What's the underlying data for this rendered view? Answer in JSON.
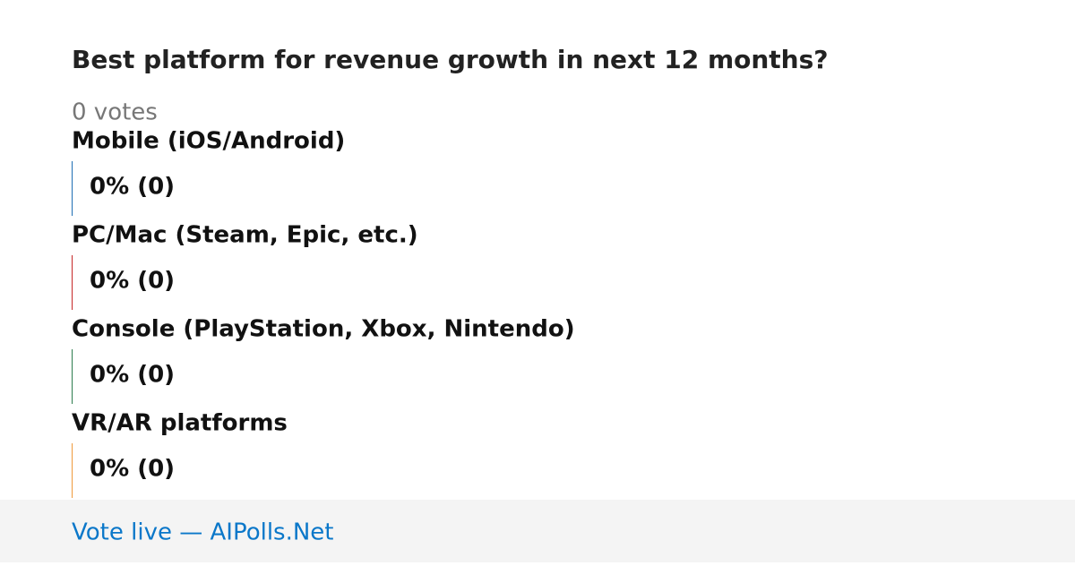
{
  "chart_data": {
    "type": "bar",
    "title": "Best platform for revenue growth in next 12 months?",
    "subtitle": "0 votes",
    "categories": [
      "Mobile (iOS/Android)",
      "PC/Mac (Steam, Epic, etc.)",
      "Console (PlayStation, Xbox, Nintendo)",
      "VR/AR platforms"
    ],
    "values": [
      0,
      0,
      0,
      0
    ],
    "value_labels": [
      "0% (0)",
      "0% (0)",
      "0% (0)",
      "0% (0)"
    ],
    "colors": [
      "#1f6fb4",
      "#c62828",
      "#2e7d4f",
      "#ef9a3c"
    ],
    "xlim": [
      0,
      100
    ]
  },
  "footer": {
    "text": "Vote live — AIPolls.Net"
  }
}
